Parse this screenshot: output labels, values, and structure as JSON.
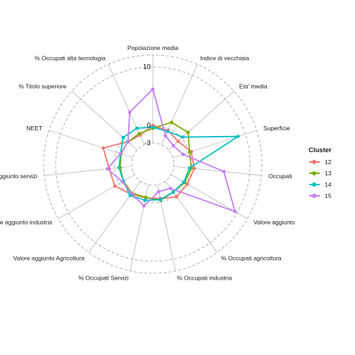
{
  "chart_data": {
    "type": "radar",
    "axes": [
      "Popolazione media",
      "Indice di vecchiaia",
      "Eta' media",
      "Superficie",
      "Occupati",
      "Valore aggiunto",
      "% Occupati agricoltura",
      "% Occupati industria",
      "% Occupati Servizi",
      "Valore aggiunto Agricoltura",
      "Valore aggiunto industria",
      "Valore aggiunto servizi",
      "NEET",
      "% Titolo superiore",
      "% Occupati alta tecnologia"
    ],
    "grid_values": [
      10,
      0,
      -3
    ],
    "grid_labels": [
      "10",
      "0",
      "-3"
    ],
    "rlim": [
      -3,
      10
    ],
    "legend": {
      "title": "Cluster",
      "position": "right"
    },
    "series": [
      {
        "name": "12",
        "color": "#F8766D",
        "values": [
          0.0,
          -0.3,
          -0.8,
          0.3,
          0.5,
          0.2,
          0.3,
          -0.6,
          -0.7,
          -0.3,
          0.9,
          0.9,
          2.3,
          -0.9,
          -1.2
        ]
      },
      {
        "name": "13",
        "color": "#7CAE00",
        "values": [
          -0.5,
          1.2,
          1.5,
          0.0,
          0.0,
          -0.3,
          -0.7,
          -0.3,
          -0.8,
          -0.5,
          -0.8,
          -1.0,
          -0.9,
          -0.9,
          -0.9
        ]
      },
      {
        "name": "14",
        "color": "#00BFC4",
        "values": [
          -0.3,
          -0.5,
          0.3,
          8.7,
          -0.3,
          -0.5,
          -0.7,
          -0.4,
          -0.3,
          0.0,
          -0.8,
          -0.8,
          -0.8,
          0.2,
          0.1
        ]
      },
      {
        "name": "15",
        "color": "#C77CFF",
        "values": [
          6.2,
          -1.3,
          -1.9,
          -1.2,
          5.6,
          9.6,
          -1.5,
          -1.8,
          0.7,
          -0.4,
          -0.6,
          1.2,
          -0.8,
          -0.9,
          3.1
        ]
      }
    ]
  }
}
